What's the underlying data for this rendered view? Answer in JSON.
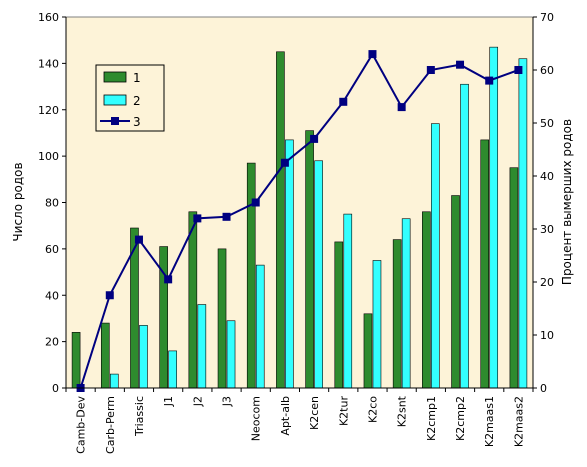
{
  "chart_data": {
    "type": "bar",
    "ylabel": "Число родов",
    "y2label": "Процент вымерших родов",
    "ylim": [
      0,
      160
    ],
    "y2lim": [
      0,
      70
    ],
    "yticks": [
      "0",
      "20",
      "40",
      "60",
      "80",
      "100",
      "120",
      "140",
      "160"
    ],
    "y2ticks": [
      "0",
      "10",
      "20",
      "30",
      "40",
      "50",
      "60",
      "70"
    ],
    "categories": [
      "Camb-Dev",
      "Carb-Perm",
      "Triassic",
      "J1",
      "J2",
      "J3",
      "Neocom",
      "Apt-alb",
      "K2cen",
      "K2tur",
      "K2co",
      "K2snt",
      "K2cmp1",
      "K2cmp2",
      "K2maas1",
      "K2maas2"
    ],
    "series": [
      {
        "name": "1",
        "kind": "bar",
        "axis": "left",
        "color": "#2e8b2e",
        "values": [
          24,
          28,
          69,
          61,
          76,
          60,
          97,
          145,
          111,
          63,
          32,
          64,
          76,
          83,
          107,
          95
        ]
      },
      {
        "name": "2",
        "kind": "bar",
        "axis": "left",
        "color": "#33ffff",
        "values": [
          0,
          6,
          27,
          16,
          36,
          29,
          53,
          107,
          98,
          75,
          55,
          73,
          114,
          131,
          147,
          142
        ]
      },
      {
        "name": "3",
        "kind": "line",
        "axis": "right",
        "color": "#000080",
        "values": [
          0,
          17.5,
          28,
          20.5,
          32,
          32.3,
          35,
          42.5,
          47,
          54,
          63,
          53,
          60,
          61,
          58,
          60
        ]
      }
    ],
    "grid": false,
    "legend_position": "top-left",
    "background": "#fdf3d8"
  }
}
